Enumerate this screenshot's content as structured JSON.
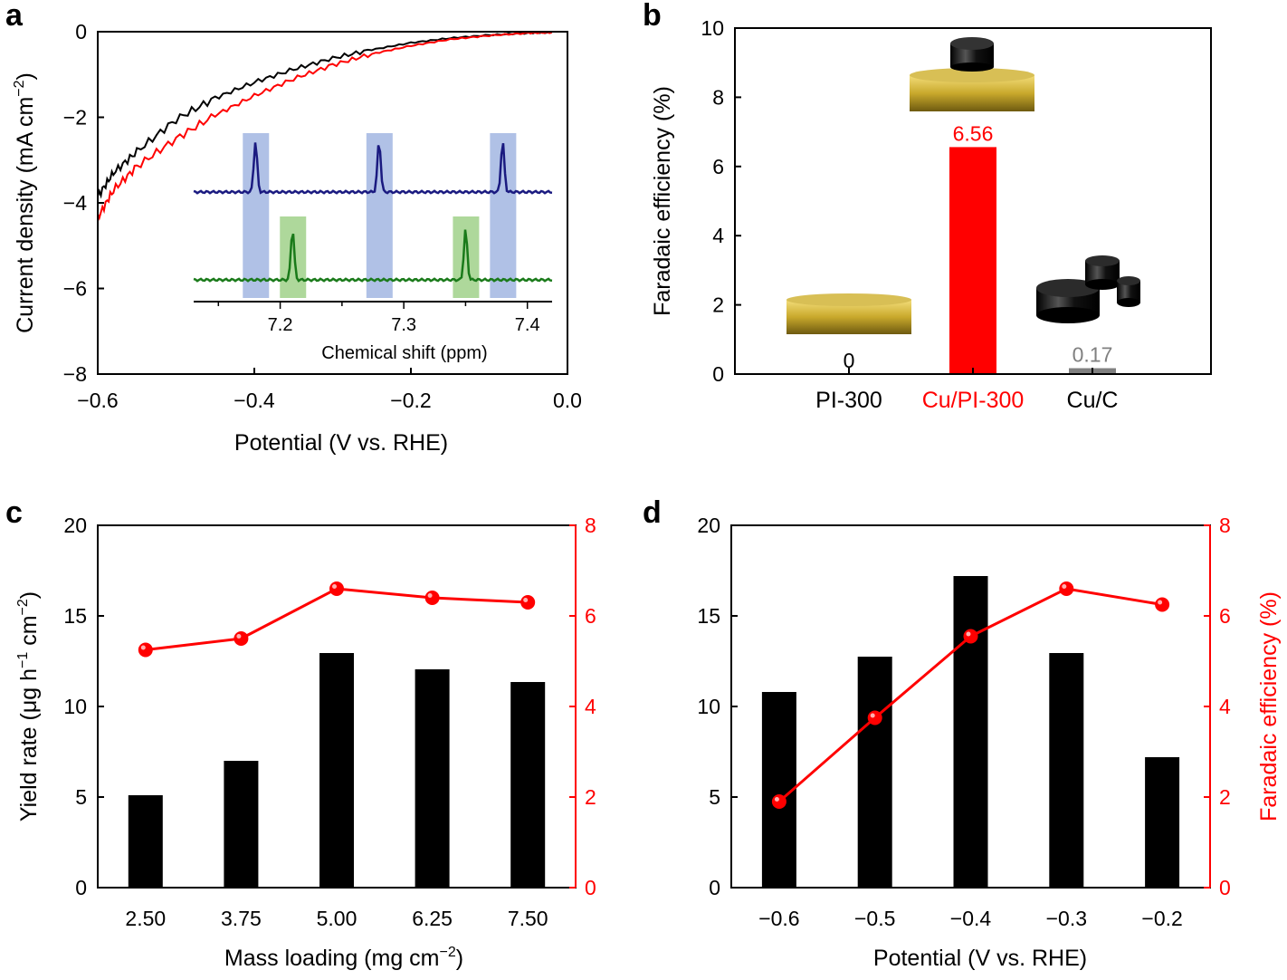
{
  "colors": {
    "black": "#000000",
    "red": "#ff0000",
    "gray": "#808080",
    "navy": "#1a1a80",
    "green": "#1a7a1a",
    "blueband": "#7b98d6",
    "greenband": "#8cc870",
    "gold": "#c9a92c"
  },
  "chart_data": [
    {
      "panel": "a",
      "type": "line",
      "xlabel": "Potential (V vs. RHE)",
      "ylabel": "Current density (mA cm",
      "ylabel_sup": "−2",
      "ylabel_end": ")",
      "xlim": [
        -0.6,
        0.0
      ],
      "ylim": [
        -8,
        0
      ],
      "xticks": [
        {
          "v": -0.6,
          "label": "−0.6"
        },
        {
          "v": -0.4,
          "label": "−0.4"
        },
        {
          "v": -0.2,
          "label": "−0.2"
        },
        {
          "v": 0.0,
          "label": "0.0"
        }
      ],
      "yticks": [
        {
          "v": 0,
          "label": "0"
        },
        {
          "v": -2,
          "label": "−2"
        },
        {
          "v": -4,
          "label": "−4"
        },
        {
          "v": -6,
          "label": "−6"
        },
        {
          "v": -8,
          "label": "−8"
        }
      ],
      "series": [
        {
          "name": "black",
          "color": "#000000",
          "x": [
            -0.6,
            -0.58,
            -0.55,
            -0.5,
            -0.45,
            -0.4,
            -0.35,
            -0.3,
            -0.25,
            -0.2,
            -0.15,
            -0.1,
            -0.05,
            -0.02
          ],
          "y": [
            -3.85,
            -3.3,
            -2.8,
            -2.05,
            -1.55,
            -1.18,
            -0.88,
            -0.62,
            -0.42,
            -0.26,
            -0.15,
            -0.08,
            -0.03,
            -0.02
          ]
        },
        {
          "name": "red",
          "color": "#ff0000",
          "x": [
            -0.6,
            -0.58,
            -0.55,
            -0.5,
            -0.45,
            -0.4,
            -0.35,
            -0.3,
            -0.25,
            -0.2,
            -0.15,
            -0.1,
            -0.05,
            -0.02
          ],
          "y": [
            -4.35,
            -3.7,
            -3.15,
            -2.5,
            -1.95,
            -1.5,
            -1.1,
            -0.78,
            -0.52,
            -0.33,
            -0.18,
            -0.09,
            -0.03,
            -0.02
          ]
        }
      ],
      "inset": {
        "xlabel": "Chemical shift (ppm)",
        "xlim": [
          7.13,
          7.42
        ],
        "xticks": [
          {
            "v": 7.2,
            "label": "7.2"
          },
          {
            "v": 7.3,
            "label": "7.3"
          },
          {
            "v": 7.4,
            "label": "7.4"
          }
        ],
        "blue_peaks": [
          7.18,
          7.28,
          7.38
        ],
        "green_peaks": [
          7.21,
          7.35
        ]
      }
    },
    {
      "panel": "b",
      "type": "bar",
      "categories": [
        "PI-300",
        "Cu/PI-300",
        "Cu/C"
      ],
      "category_colors": [
        "#000000",
        "#ff0000",
        "#000000"
      ],
      "values": [
        0,
        6.56,
        0.17
      ],
      "value_labels": [
        "0",
        "6.56",
        "0.17"
      ],
      "bar_colors": [
        "#000000",
        "#ff0000",
        "#808080"
      ],
      "ylabel": "Faradaic efficiency (%)",
      "ylim": [
        0,
        10
      ],
      "yticks": [
        0,
        2,
        4,
        6,
        8,
        10
      ]
    },
    {
      "panel": "c",
      "type": "bar+line",
      "categories": [
        "2.50",
        "3.75",
        "5.00",
        "6.25",
        "7.50"
      ],
      "bar_values": [
        5.1,
        7.0,
        12.95,
        12.05,
        11.35
      ],
      "line_values": [
        5.25,
        5.5,
        6.6,
        6.4,
        6.3
      ],
      "xlabel": "Mass loading (mg cm",
      "xlabel_sup": "−2",
      "xlabel_end": ")",
      "ylabel": "Yield rate (μg h",
      "ylabel_sup1": "−1",
      "ylabel_mid": " cm",
      "ylabel_sup2": "−2",
      "ylabel_end": ")",
      "ylim": [
        0,
        20
      ],
      "yticks": [
        0,
        5,
        10,
        15,
        20
      ],
      "y2lim": [
        0,
        8
      ],
      "y2ticks": [
        0,
        2,
        4,
        6,
        8
      ]
    },
    {
      "panel": "d",
      "type": "bar+line",
      "categories": [
        "−0.6",
        "−0.5",
        "−0.4",
        "−0.3",
        "−0.2"
      ],
      "bar_values": [
        10.8,
        12.75,
        17.2,
        12.95,
        7.2
      ],
      "line_values": [
        1.9,
        3.75,
        5.55,
        6.6,
        6.25
      ],
      "xlabel": "Potential (V vs. RHE)",
      "ylim": [
        0,
        20
      ],
      "yticks": [
        0,
        5,
        10,
        15,
        20
      ],
      "y2label": "Faradaic efficiency (%)",
      "y2lim": [
        0,
        8
      ],
      "y2ticks": [
        0,
        2,
        4,
        6,
        8
      ]
    }
  ]
}
